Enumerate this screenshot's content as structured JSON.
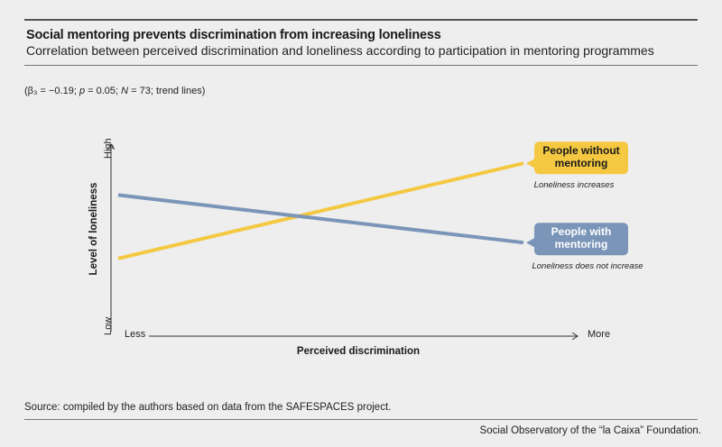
{
  "header": {
    "title": "Social mentoring prevents discrimination from increasing loneliness",
    "subtitle": "Correlation between perceived discrimination and loneliness according to participation in mentoring programmes"
  },
  "stats": {
    "beta": "(β₃ = −0.19; ",
    "p_label": "p",
    "p_value": " = 0.05; ",
    "n_label": "N",
    "n_value": " = 73; trend lines)"
  },
  "chart_data": {
    "type": "line",
    "xlabel": "Perceived discrimination",
    "ylabel": "Level of loneliness",
    "x_ticks": [
      "Less",
      "More"
    ],
    "y_ticks": [
      "Low",
      "High"
    ],
    "ylim": [
      0,
      1
    ],
    "series": [
      {
        "name": "People without mentoring",
        "label_lines": [
          "People without",
          "mentoring"
        ],
        "note": "Loneliness increases",
        "color": "#f5c842",
        "values": [
          0.36,
          0.84
        ]
      },
      {
        "name": "People with mentoring",
        "label_lines": [
          "People with",
          "mentoring"
        ],
        "note": "Loneliness does not increase",
        "color": "#7a95b8",
        "values": [
          0.68,
          0.44
        ]
      }
    ]
  },
  "source": "Source: compiled by the authors based on data from the SAFESPACES project.",
  "footer": "Social Observatory of the “la Caixa” Foundation."
}
